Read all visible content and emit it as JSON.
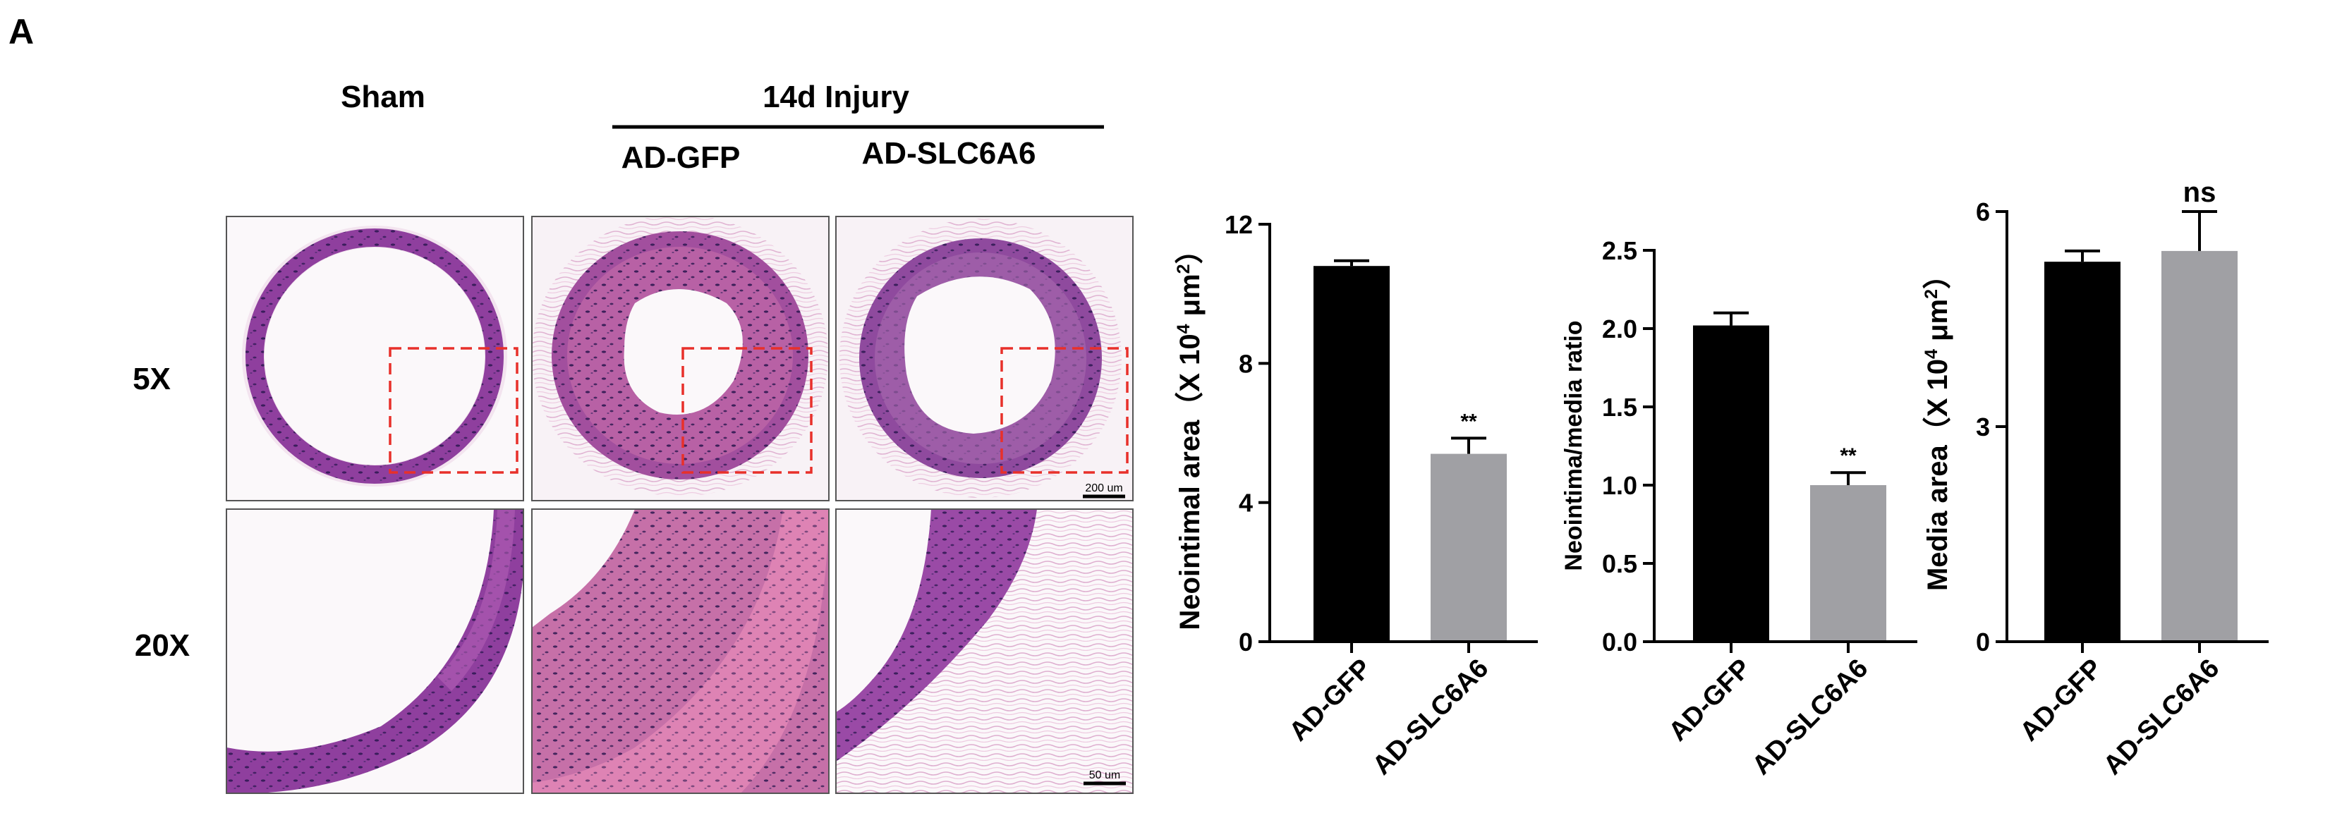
{
  "panel_label": "A",
  "histology": {
    "col_headers": {
      "sham": "Sham",
      "injury": "14d Injury",
      "gfp": "AD-GFP",
      "slc": "AD-SLC6A6"
    },
    "row_labels": [
      "5X",
      "20X"
    ],
    "scale_bars": {
      "low": "200 um",
      "high": "50 um"
    },
    "colors": {
      "lumen_bg": "#f7f4f6",
      "media": "#8f3f9e",
      "media_light": "#b35fb6",
      "neointima": "#b0609c",
      "adventitia": "#e8cde0",
      "stain_pink": "#e58ab8",
      "box": "#e8302a"
    }
  },
  "chart_data": [
    {
      "type": "bar",
      "title": "",
      "categories": [
        "AD-GFP",
        "AD-SLC6A6"
      ],
      "values": [
        10.8,
        5.4
      ],
      "errors": [
        0.15,
        0.45
      ],
      "colors": [
        "#000000",
        "#a0a0a4"
      ],
      "ylabel_main": "Neointimal area（X 10",
      "ylabel_sup1": "4",
      "ylabel_mid": " μm",
      "ylabel_sup2": "2",
      "ylabel_end": "）",
      "ylim": [
        0,
        12
      ],
      "yticks": [
        "0",
        "4",
        "8",
        "12"
      ],
      "annotations": [
        "",
        "**"
      ]
    },
    {
      "type": "bar",
      "title": "",
      "categories": [
        "AD-GFP",
        "AD-SLC6A6"
      ],
      "values": [
        2.02,
        1.0
      ],
      "errors": [
        0.08,
        0.08
      ],
      "colors": [
        "#000000",
        "#a0a0a4"
      ],
      "ylabel": "Neointima/media ratio",
      "ylim": [
        0,
        2.5
      ],
      "yticks": [
        "0.0",
        "0.5",
        "1.0",
        "1.5",
        "2.0",
        "2.5"
      ],
      "annotations": [
        "",
        "**"
      ]
    },
    {
      "type": "bar",
      "title": "",
      "categories": [
        "AD-GFP",
        "AD-SLC6A6"
      ],
      "values": [
        5.3,
        5.45
      ],
      "errors": [
        0.15,
        0.55
      ],
      "colors": [
        "#000000",
        "#a0a0a4"
      ],
      "ylabel_main": "Media area（X 10",
      "ylabel_sup1": "4",
      "ylabel_mid": " μm",
      "ylabel_sup2": "2",
      "ylabel_end": "）",
      "ylim": [
        0,
        6
      ],
      "yticks": [
        "0",
        "3",
        "6"
      ],
      "annotations": [
        "",
        "ns"
      ]
    }
  ]
}
